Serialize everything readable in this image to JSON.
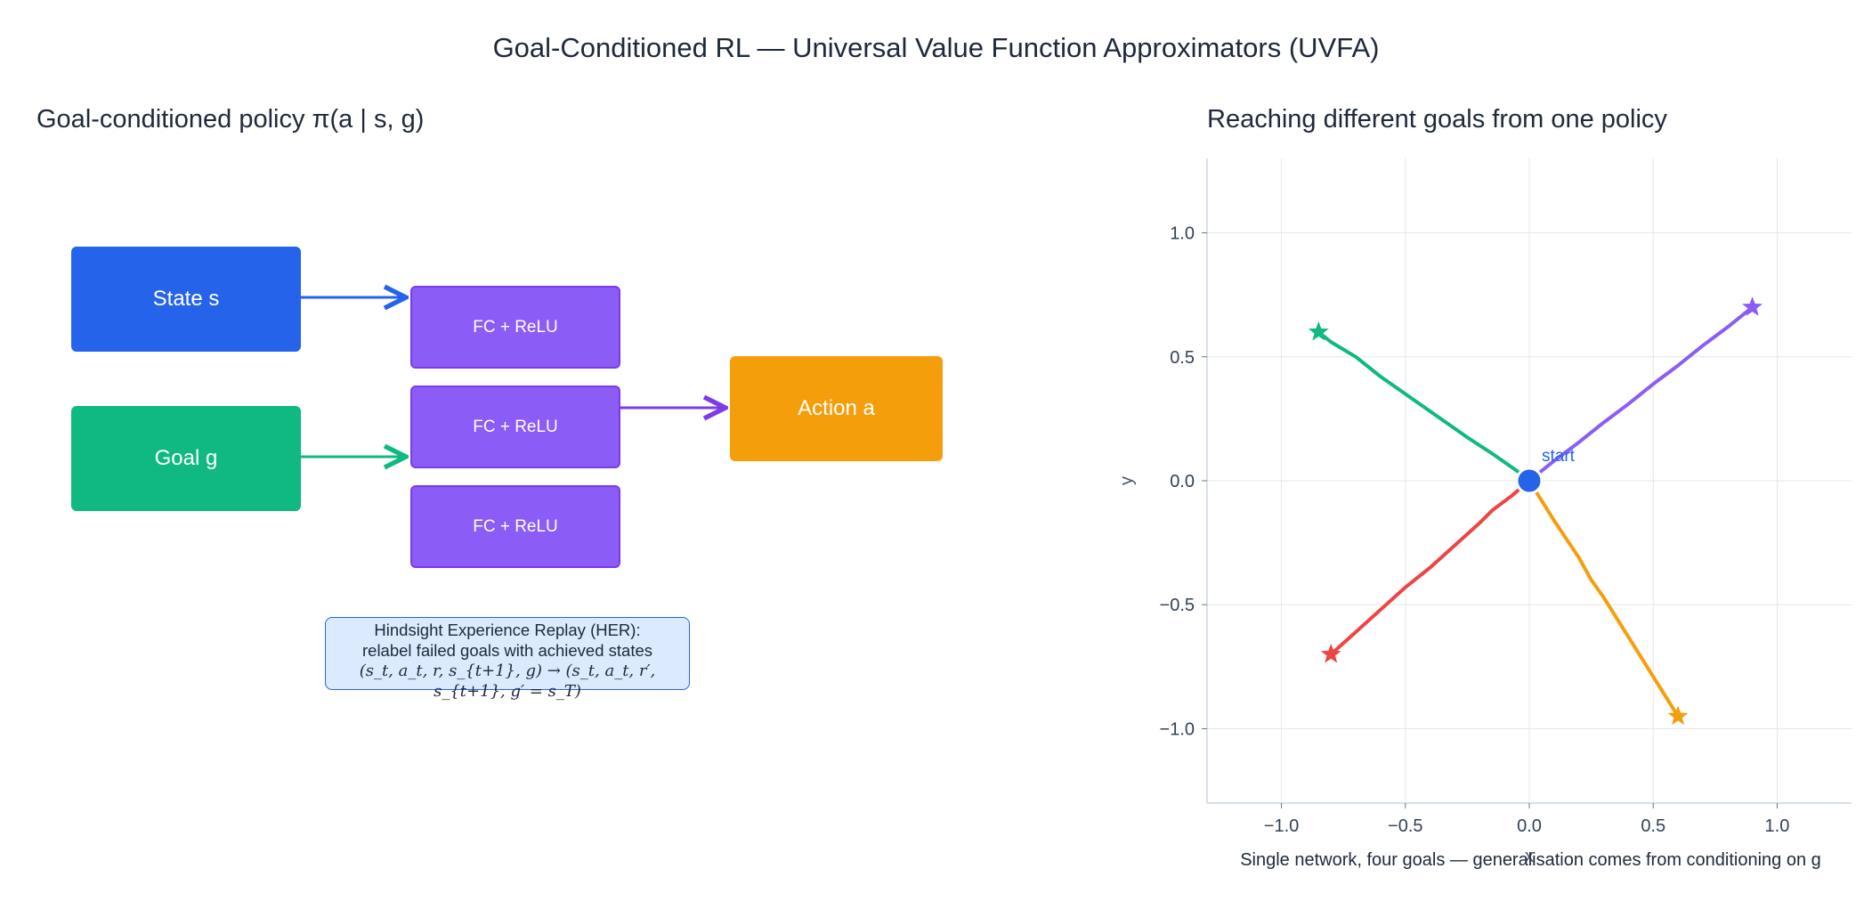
{
  "title": "Goal-Conditioned RL — Universal Value Function Approximators (UVFA)",
  "left_panel": {
    "title": "Goal-conditioned policy π(a | s, g)",
    "state_label": "State s",
    "goal_label": "Goal g",
    "fc_layers": [
      "FC + ReLU",
      "FC + ReLU",
      "FC + ReLU"
    ],
    "action_label": "Action a",
    "her_note": {
      "line1": "Hindsight Experience Replay (HER):",
      "line2": "relabel failed goals with achieved states",
      "formula": "(s_t, a_t, r, s_{t+1}, g) → (s_t, a_t, r′, s_{t+1}, g′ = s_T)"
    },
    "colors": {
      "state": "#2563eb",
      "goal": "#10b981",
      "fc": "#8b5cf6",
      "action": "#f59e0b"
    }
  },
  "right_panel": {
    "title": "Reaching different goals from one policy",
    "caption": "Single network, four goals — generalisation comes from conditioning on g",
    "chart_data": {
      "type": "line",
      "xlabel": "x",
      "ylabel": "y",
      "xlim": [
        -1.3,
        1.3
      ],
      "ylim": [
        -1.3,
        1.3
      ],
      "xticks": [
        -1.0,
        -0.5,
        0.0,
        0.5,
        1.0
      ],
      "yticks": [
        -1.0,
        -0.5,
        0.0,
        0.5,
        1.0
      ],
      "tick_labels": [
        "−1.0",
        "−0.5",
        "0.0",
        "0.5",
        "1.0"
      ],
      "grid": true,
      "start": {
        "x": 0.0,
        "y": 0.0,
        "label": "start",
        "color": "#2563eb"
      },
      "series": [
        {
          "color": "#8b5cf6",
          "goal": [
            0.9,
            0.7
          ],
          "points": [
            [
              0,
              0
            ],
            [
              0.1,
              0.08
            ],
            [
              0.2,
              0.155
            ],
            [
              0.3,
              0.235
            ],
            [
              0.4,
              0.31
            ],
            [
              0.5,
              0.39
            ],
            [
              0.6,
              0.465
            ],
            [
              0.7,
              0.545
            ],
            [
              0.8,
              0.62
            ],
            [
              0.9,
              0.7
            ]
          ]
        },
        {
          "color": "#10b981",
          "goal": [
            -0.85,
            0.6
          ],
          "points": [
            [
              0,
              0
            ],
            [
              -0.05,
              0.04
            ],
            [
              -0.15,
              0.11
            ],
            [
              -0.25,
              0.175
            ],
            [
              -0.3,
              0.21
            ],
            [
              -0.4,
              0.28
            ],
            [
              -0.5,
              0.35
            ],
            [
              -0.6,
              0.42
            ],
            [
              -0.7,
              0.5
            ],
            [
              -0.8,
              0.56
            ],
            [
              -0.85,
              0.6
            ]
          ]
        },
        {
          "color": "#ef4444",
          "goal": [
            -0.8,
            -0.7
          ],
          "points": [
            [
              0,
              0
            ],
            [
              -0.07,
              -0.06
            ],
            [
              -0.15,
              -0.12
            ],
            [
              -0.2,
              -0.17
            ],
            [
              -0.3,
              -0.26
            ],
            [
              -0.4,
              -0.35
            ],
            [
              -0.5,
              -0.43
            ],
            [
              -0.6,
              -0.52
            ],
            [
              -0.7,
              -0.61
            ],
            [
              -0.8,
              -0.7
            ]
          ]
        },
        {
          "color": "#f59e0b",
          "goal": [
            0.6,
            -0.95
          ],
          "points": [
            [
              0,
              0
            ],
            [
              0.05,
              -0.08
            ],
            [
              0.1,
              -0.16
            ],
            [
              0.2,
              -0.31
            ],
            [
              0.25,
              -0.4
            ],
            [
              0.3,
              -0.47
            ],
            [
              0.4,
              -0.63
            ],
            [
              0.5,
              -0.79
            ],
            [
              0.55,
              -0.87
            ],
            [
              0.6,
              -0.95
            ]
          ]
        }
      ]
    }
  }
}
